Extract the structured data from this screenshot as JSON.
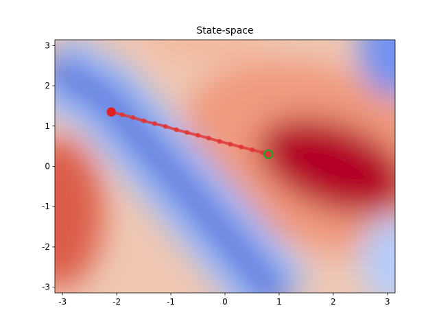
{
  "chart_data": {
    "type": "line",
    "title": "State-space",
    "x": [
      -2.1,
      -1.9,
      -1.7,
      -1.5,
      -1.3,
      -1.1,
      -0.9,
      -0.7,
      -0.5,
      -0.3,
      -0.1,
      0.1,
      0.3,
      0.5,
      0.7,
      0.8
    ],
    "series": [
      {
        "color": "#e03535",
        "values": [
          1.35,
          1.28,
          1.21,
          1.13,
          1.06,
          0.99,
          0.91,
          0.84,
          0.77,
          0.7,
          0.62,
          0.55,
          0.48,
          0.41,
          0.34,
          0.3
        ]
      }
    ],
    "start_color": "#2ca02c",
    "end_color": "#e02020",
    "xlim": [
      -3.1416,
      3.1416
    ],
    "xticks": [
      -3,
      -2,
      -1,
      0,
      1,
      2,
      3
    ],
    "ylim": [
      -3.1416,
      3.1416
    ],
    "yticks": [
      -3,
      -2,
      -1,
      0,
      1,
      2,
      3
    ]
  }
}
